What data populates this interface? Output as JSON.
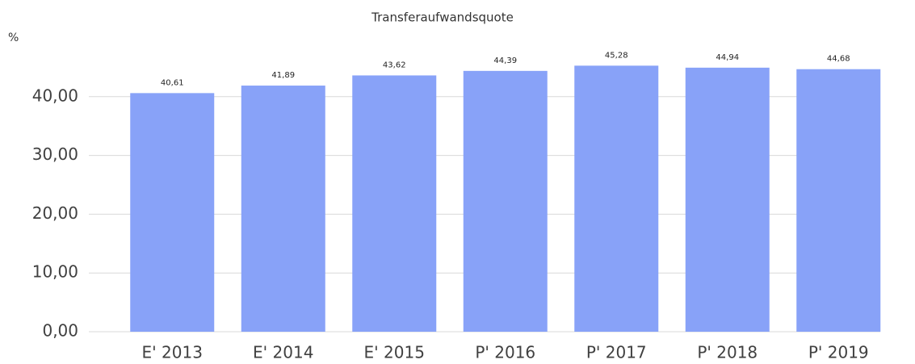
{
  "chart_data": {
    "type": "bar",
    "title": "Transferaufwandsquote",
    "y_label": "%",
    "categories": [
      "E' 2013",
      "E' 2014",
      "E' 2015",
      "P' 2016",
      "P' 2017",
      "P' 2018",
      "P' 2019"
    ],
    "values": [
      40.61,
      41.89,
      43.62,
      44.39,
      45.28,
      44.94,
      44.68
    ],
    "value_labels": [
      "40,61",
      "41,89",
      "43,62",
      "44,39",
      "45,28",
      "44,94",
      "44,68"
    ],
    "color": "#88a2f8",
    "ylim": [
      0,
      50
    ],
    "yticks": [
      {
        "value": 0,
        "label": "0,00"
      },
      {
        "value": 10,
        "label": "10,00"
      },
      {
        "value": 20,
        "label": "20,00"
      },
      {
        "value": 30,
        "label": "30,00"
      },
      {
        "value": 40,
        "label": "40,00"
      }
    ],
    "grid": true
  }
}
